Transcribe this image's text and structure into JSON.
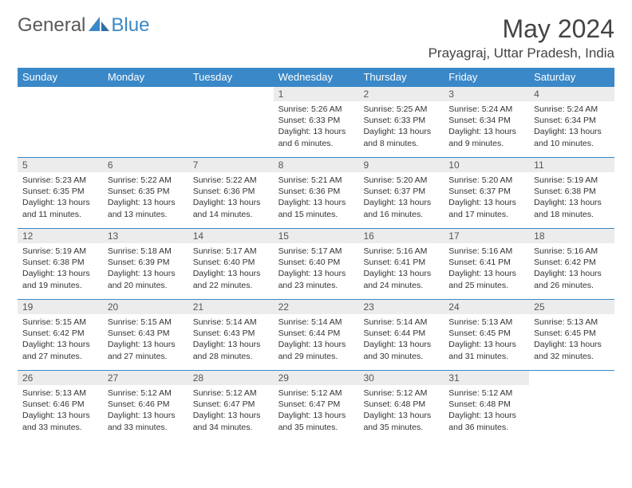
{
  "brand": {
    "part1": "General",
    "part2": "Blue"
  },
  "title": "May 2024",
  "location": "Prayagraj, Uttar Pradesh, India",
  "accent_color": "#3a88c8",
  "daynum_bg": "#ececec",
  "daysOfWeek": [
    "Sunday",
    "Monday",
    "Tuesday",
    "Wednesday",
    "Thursday",
    "Friday",
    "Saturday"
  ],
  "weeks": [
    [
      {
        "n": "",
        "sr": "",
        "ss": "",
        "dl": ""
      },
      {
        "n": "",
        "sr": "",
        "ss": "",
        "dl": ""
      },
      {
        "n": "",
        "sr": "",
        "ss": "",
        "dl": ""
      },
      {
        "n": "1",
        "sr": "5:26 AM",
        "ss": "6:33 PM",
        "dl": "13 hours and 6 minutes."
      },
      {
        "n": "2",
        "sr": "5:25 AM",
        "ss": "6:33 PM",
        "dl": "13 hours and 8 minutes."
      },
      {
        "n": "3",
        "sr": "5:24 AM",
        "ss": "6:34 PM",
        "dl": "13 hours and 9 minutes."
      },
      {
        "n": "4",
        "sr": "5:24 AM",
        "ss": "6:34 PM",
        "dl": "13 hours and 10 minutes."
      }
    ],
    [
      {
        "n": "5",
        "sr": "5:23 AM",
        "ss": "6:35 PM",
        "dl": "13 hours and 11 minutes."
      },
      {
        "n": "6",
        "sr": "5:22 AM",
        "ss": "6:35 PM",
        "dl": "13 hours and 13 minutes."
      },
      {
        "n": "7",
        "sr": "5:22 AM",
        "ss": "6:36 PM",
        "dl": "13 hours and 14 minutes."
      },
      {
        "n": "8",
        "sr": "5:21 AM",
        "ss": "6:36 PM",
        "dl": "13 hours and 15 minutes."
      },
      {
        "n": "9",
        "sr": "5:20 AM",
        "ss": "6:37 PM",
        "dl": "13 hours and 16 minutes."
      },
      {
        "n": "10",
        "sr": "5:20 AM",
        "ss": "6:37 PM",
        "dl": "13 hours and 17 minutes."
      },
      {
        "n": "11",
        "sr": "5:19 AM",
        "ss": "6:38 PM",
        "dl": "13 hours and 18 minutes."
      }
    ],
    [
      {
        "n": "12",
        "sr": "5:19 AM",
        "ss": "6:38 PM",
        "dl": "13 hours and 19 minutes."
      },
      {
        "n": "13",
        "sr": "5:18 AM",
        "ss": "6:39 PM",
        "dl": "13 hours and 20 minutes."
      },
      {
        "n": "14",
        "sr": "5:17 AM",
        "ss": "6:40 PM",
        "dl": "13 hours and 22 minutes."
      },
      {
        "n": "15",
        "sr": "5:17 AM",
        "ss": "6:40 PM",
        "dl": "13 hours and 23 minutes."
      },
      {
        "n": "16",
        "sr": "5:16 AM",
        "ss": "6:41 PM",
        "dl": "13 hours and 24 minutes."
      },
      {
        "n": "17",
        "sr": "5:16 AM",
        "ss": "6:41 PM",
        "dl": "13 hours and 25 minutes."
      },
      {
        "n": "18",
        "sr": "5:16 AM",
        "ss": "6:42 PM",
        "dl": "13 hours and 26 minutes."
      }
    ],
    [
      {
        "n": "19",
        "sr": "5:15 AM",
        "ss": "6:42 PM",
        "dl": "13 hours and 27 minutes."
      },
      {
        "n": "20",
        "sr": "5:15 AM",
        "ss": "6:43 PM",
        "dl": "13 hours and 27 minutes."
      },
      {
        "n": "21",
        "sr": "5:14 AM",
        "ss": "6:43 PM",
        "dl": "13 hours and 28 minutes."
      },
      {
        "n": "22",
        "sr": "5:14 AM",
        "ss": "6:44 PM",
        "dl": "13 hours and 29 minutes."
      },
      {
        "n": "23",
        "sr": "5:14 AM",
        "ss": "6:44 PM",
        "dl": "13 hours and 30 minutes."
      },
      {
        "n": "24",
        "sr": "5:13 AM",
        "ss": "6:45 PM",
        "dl": "13 hours and 31 minutes."
      },
      {
        "n": "25",
        "sr": "5:13 AM",
        "ss": "6:45 PM",
        "dl": "13 hours and 32 minutes."
      }
    ],
    [
      {
        "n": "26",
        "sr": "5:13 AM",
        "ss": "6:46 PM",
        "dl": "13 hours and 33 minutes."
      },
      {
        "n": "27",
        "sr": "5:12 AM",
        "ss": "6:46 PM",
        "dl": "13 hours and 33 minutes."
      },
      {
        "n": "28",
        "sr": "5:12 AM",
        "ss": "6:47 PM",
        "dl": "13 hours and 34 minutes."
      },
      {
        "n": "29",
        "sr": "5:12 AM",
        "ss": "6:47 PM",
        "dl": "13 hours and 35 minutes."
      },
      {
        "n": "30",
        "sr": "5:12 AM",
        "ss": "6:48 PM",
        "dl": "13 hours and 35 minutes."
      },
      {
        "n": "31",
        "sr": "5:12 AM",
        "ss": "6:48 PM",
        "dl": "13 hours and 36 minutes."
      },
      {
        "n": "",
        "sr": "",
        "ss": "",
        "dl": ""
      }
    ]
  ],
  "labels": {
    "sunrise": "Sunrise: ",
    "sunset": "Sunset: ",
    "daylight": "Daylight: "
  }
}
